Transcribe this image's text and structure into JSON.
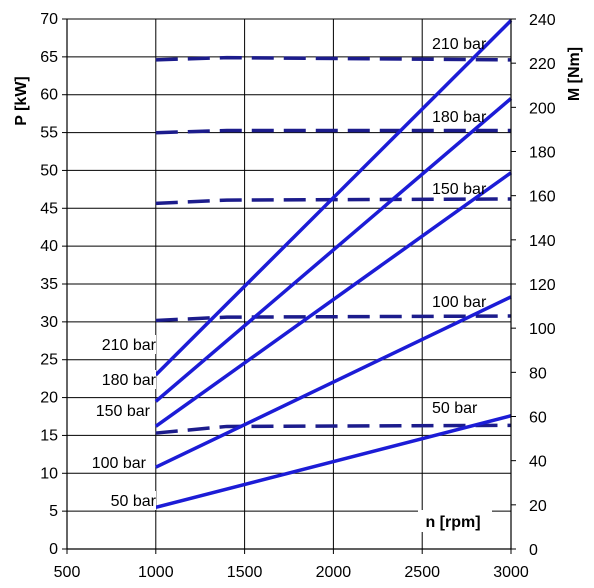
{
  "chart_data": {
    "type": "line",
    "xlabel": "n [rpm]",
    "ylabel": "P [kW]",
    "y2label": "M [Nm]",
    "xlim": [
      500,
      3000
    ],
    "ylim": [
      0,
      70
    ],
    "y2lim": [
      0,
      240
    ],
    "x_ticks": [
      500,
      1000,
      1500,
      2000,
      2500,
      3000
    ],
    "y_ticks": [
      0,
      5,
      10,
      15,
      20,
      25,
      30,
      35,
      40,
      45,
      50,
      55,
      60,
      65,
      70
    ],
    "y2_ticks": [
      0,
      20,
      40,
      60,
      80,
      100,
      120,
      140,
      160,
      180,
      200,
      220,
      240
    ],
    "grid": true,
    "line_color": "#1c1cd6",
    "torque_color": "#1c1c8c",
    "power_series": [
      {
        "name": "210 bar",
        "axis": "left",
        "style": "solid",
        "x": [
          1000,
          3000
        ],
        "y": [
          23,
          69.8
        ]
      },
      {
        "name": "180 bar",
        "axis": "left",
        "style": "solid",
        "x": [
          1000,
          3000
        ],
        "y": [
          19.5,
          59.5
        ]
      },
      {
        "name": "150 bar",
        "axis": "left",
        "style": "solid",
        "x": [
          1000,
          3000
        ],
        "y": [
          16.2,
          49.7
        ]
      },
      {
        "name": "100 bar",
        "axis": "left",
        "style": "solid",
        "x": [
          1000,
          3000
        ],
        "y": [
          10.8,
          33.3
        ]
      },
      {
        "name": "50 bar",
        "axis": "left",
        "style": "solid",
        "x": [
          1000,
          3000
        ],
        "y": [
          5.5,
          17.6
        ]
      }
    ],
    "torque_series": [
      {
        "name": "210 bar",
        "axis": "right",
        "style": "dashed",
        "x": [
          1000,
          1400,
          3000
        ],
        "y": [
          221.5,
          222.5,
          221.5
        ]
      },
      {
        "name": "180 bar",
        "axis": "right",
        "style": "dashed",
        "x": [
          1000,
          1400,
          3000
        ],
        "y": [
          188.5,
          189.5,
          189.5
        ]
      },
      {
        "name": "150 bar",
        "axis": "right",
        "style": "dashed",
        "x": [
          1000,
          1400,
          3000
        ],
        "y": [
          156.5,
          158,
          158.5
        ]
      },
      {
        "name": "100 bar",
        "axis": "right",
        "style": "dashed",
        "x": [
          1000,
          1400,
          3000
        ],
        "y": [
          103.5,
          105,
          105.5
        ]
      },
      {
        "name": "50 bar",
        "axis": "right",
        "style": "dashed",
        "x": [
          1000,
          1400,
          3000
        ],
        "y": [
          52.5,
          55.5,
          56
        ]
      }
    ],
    "left_labels": [
      "210 bar",
      "180 bar",
      "150 bar",
      "100 bar",
      "50 bar"
    ],
    "right_labels": [
      "210 bar",
      "180 bar",
      "150 bar",
      "100 bar",
      "50 bar"
    ]
  }
}
